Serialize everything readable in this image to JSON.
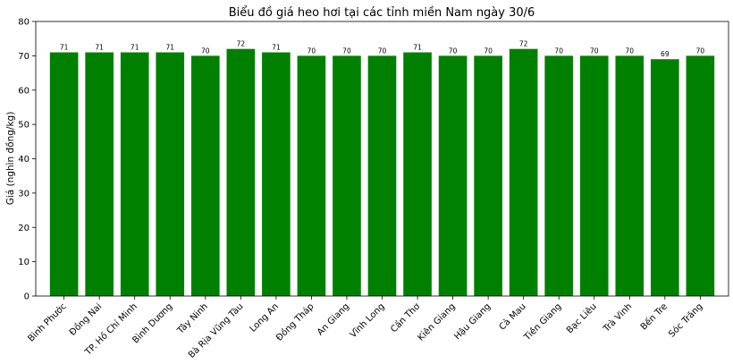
{
  "chart_data": {
    "type": "bar",
    "title": "Biểu đồ giá heo hơi tại các tỉnh miền Nam ngày 30/6",
    "xlabel": "",
    "ylabel": "Giá (nghìn đồng/kg)",
    "ylim": [
      0,
      80
    ],
    "yticks": [
      0,
      10,
      20,
      30,
      40,
      50,
      60,
      70,
      80
    ],
    "bar_color": "#008000",
    "grid": false,
    "categories": [
      "Bình Phước",
      "Đồng Nai",
      "TP. Hồ Chí Minh",
      "Bình Dương",
      "Tây Ninh",
      "Bà Rịa Vũng Tàu",
      "Long An",
      "Đồng Tháp",
      "An Giang",
      "Vĩnh Long",
      "Cần Thơ",
      "Kiên Giang",
      "Hậu Giang",
      "Cà Mau",
      "Tiền Giang",
      "Bạc Liêu",
      "Trà Vinh",
      "Bến Tre",
      "Sóc Trăng"
    ],
    "values": [
      71,
      71,
      71,
      71,
      70,
      72,
      71,
      70,
      70,
      70,
      71,
      70,
      70,
      72,
      70,
      70,
      70,
      69,
      70
    ]
  }
}
